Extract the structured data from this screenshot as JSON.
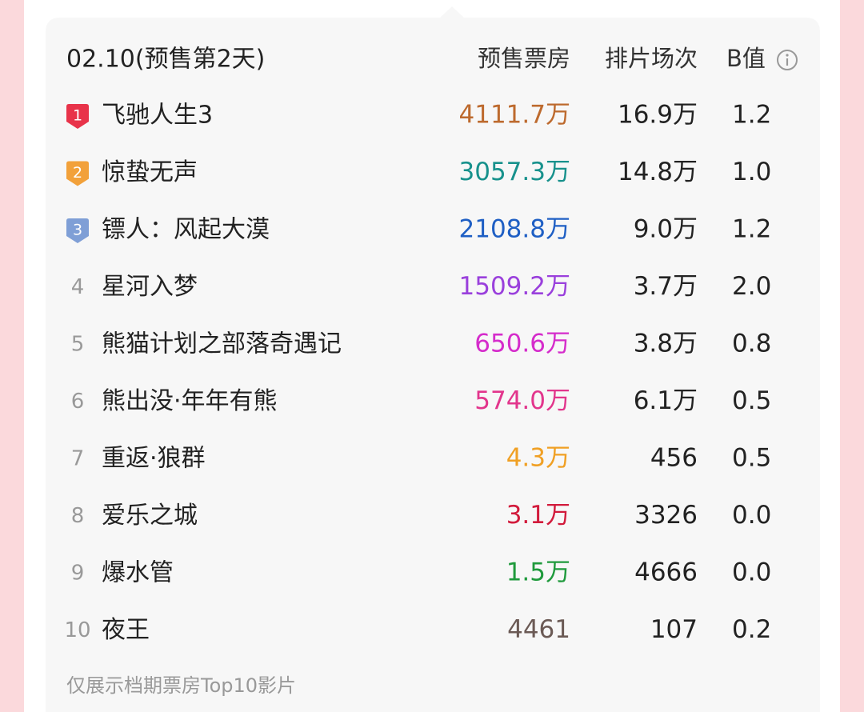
{
  "header": {
    "date": "02.10(预售第2天)",
    "col_presale": "预售票房",
    "col_sessions": "排片场次",
    "col_b": "B值"
  },
  "table": {
    "rows": [
      {
        "rank": "1",
        "title": "飞驰人生3",
        "presale": "4111.7万",
        "sessions": "16.9万",
        "b": "1.2",
        "color": "#bd6a2e",
        "badge_color": "#e8334a"
      },
      {
        "rank": "2",
        "title": "惊蛰无声",
        "presale": "3057.3万",
        "sessions": "14.8万",
        "b": "1.0",
        "color": "#17918c",
        "badge_color": "#f2a13a"
      },
      {
        "rank": "3",
        "title": "镖人：风起大漠",
        "presale": "2108.8万",
        "sessions": "9.0万",
        "b": "1.2",
        "color": "#1f5fc4",
        "badge_color": "#7f9fd6"
      },
      {
        "rank": "4",
        "title": "星河入梦",
        "presale": "1509.2万",
        "sessions": "3.7万",
        "b": "2.0",
        "color": "#9a40dc"
      },
      {
        "rank": "5",
        "title": "熊猫计划之部落奇遇记",
        "presale": "650.6万",
        "sessions": "3.8万",
        "b": "0.8",
        "color": "#d52ccb"
      },
      {
        "rank": "6",
        "title": "熊出没·年年有熊",
        "presale": "574.0万",
        "sessions": "6.1万",
        "b": "0.5",
        "color": "#e2358c"
      },
      {
        "rank": "7",
        "title": "重返·狼群",
        "presale": "4.3万",
        "sessions": "456",
        "b": "0.5",
        "color": "#f0a024"
      },
      {
        "rank": "8",
        "title": "爱乐之城",
        "presale": "3.1万",
        "sessions": "3326",
        "b": "0.0",
        "color": "#d21b3c"
      },
      {
        "rank": "9",
        "title": "爆水管",
        "presale": "1.5万",
        "sessions": "4666",
        "b": "0.0",
        "color": "#1f9a3c"
      },
      {
        "rank": "10",
        "title": "夜王",
        "presale": "4461",
        "sessions": "107",
        "b": "0.2",
        "color": "#6b5a55"
      }
    ]
  },
  "footer": "仅展示档期票房Top10影片"
}
